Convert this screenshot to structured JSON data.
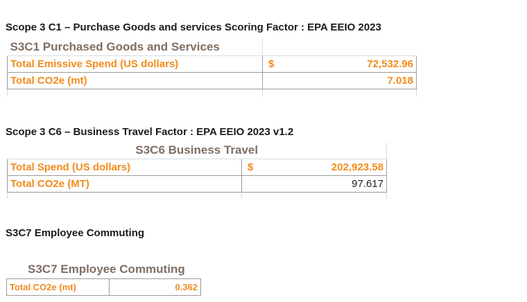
{
  "section1": {
    "heading": "Scope 3 C1 – Purchase Goods and services  Scoring Factor : EPA EEIO 2023",
    "table_title": "S3C1 Purchased Goods and Services",
    "rows": [
      {
        "label": "Total Emissive Spend (US dollars)",
        "currency": "$",
        "value": "72,532.96"
      },
      {
        "label": "Total CO2e (mt)",
        "currency": "",
        "value": "7.018"
      }
    ]
  },
  "section2": {
    "heading": "Scope 3 C6 – Business Travel  Factor : EPA EEIO 2023 v1.2",
    "table_title": "S3C6 Business Travel",
    "rows": [
      {
        "label": "Total Spend (US dollars)",
        "currency": "$",
        "value": "202,923.58"
      },
      {
        "label": "Total CO2e (MT)",
        "currency": "",
        "value": "97.617"
      }
    ]
  },
  "section3": {
    "heading": "S3C7 Employee Commuting",
    "table_title": "S3C7 Employee Commuting",
    "rows": [
      {
        "label": "Total CO2e (mt)",
        "value": "0.362"
      }
    ]
  },
  "colors": {
    "accent_orange": "#f28a1c",
    "title_brown": "#7f6e63"
  }
}
